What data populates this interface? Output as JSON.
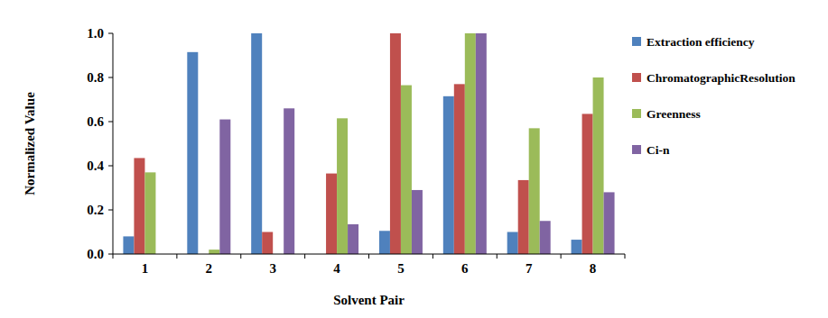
{
  "chart_data": {
    "type": "bar",
    "x_label": "Solvent Pair",
    "y_label": "Normalized Value",
    "categories": [
      "1",
      "2",
      "3",
      "4",
      "5",
      "6",
      "7",
      "8"
    ],
    "series": [
      {
        "name": "Extraction efficiency",
        "color": "#4f81bd",
        "values": [
          0.08,
          0.915,
          1.0,
          0,
          0.105,
          0.715,
          0.1,
          0.065
        ]
      },
      {
        "name": "ChromatographicResolution",
        "color": "#c0504d",
        "values": [
          0.435,
          0,
          0.1,
          0.365,
          1.0,
          0.77,
          0.335,
          0.635
        ]
      },
      {
        "name": "Greenness",
        "color": "#9bbb59",
        "values": [
          0.37,
          0.02,
          0,
          0.615,
          0.765,
          1.0,
          0.57,
          0.8
        ]
      },
      {
        "name": "Ci-n",
        "color": "#8064a2",
        "values": [
          0,
          0.61,
          0.66,
          0.135,
          0.29,
          1.0,
          0.15,
          0.28
        ]
      }
    ],
    "ylim": [
      0,
      1
    ],
    "yticks": [
      {
        "value": 0,
        "label": "0.0"
      },
      0.2,
      0.4,
      0.6,
      0.8,
      {
        "value": 1,
        "label": "1.0"
      }
    ],
    "grid": false,
    "legend": "right"
  }
}
